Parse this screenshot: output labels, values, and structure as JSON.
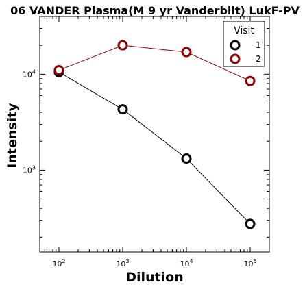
{
  "chart_data": {
    "type": "line",
    "title": "06 VANDER Plasma(M 9 yr Vanderbilt) LukF-PV",
    "xlabel": "Dilution",
    "ylabel": "Intensity",
    "x_scale": "log",
    "y_scale": "log",
    "xlim": [
      50,
      200000
    ],
    "ylim": [
      140,
      40000
    ],
    "x_ticks": [
      {
        "value": 100,
        "base": "10",
        "exp": "2"
      },
      {
        "value": 1000,
        "base": "10",
        "exp": "3"
      },
      {
        "value": 10000,
        "base": "10",
        "exp": "4"
      },
      {
        "value": 100000,
        "base": "10",
        "exp": "5"
      }
    ],
    "y_ticks": [
      {
        "value": 1000,
        "base": "10",
        "exp": "3"
      },
      {
        "value": 10000,
        "base": "10",
        "exp": "4"
      }
    ],
    "legend": {
      "title": "Visit",
      "position": "top-right"
    },
    "series": [
      {
        "name": "1",
        "color": "#000000",
        "x": [
          100,
          1000,
          10000,
          100000
        ],
        "y": [
          10500,
          4300,
          1320,
          275
        ]
      },
      {
        "name": "2",
        "color": "#8b0000",
        "x": [
          100,
          1000,
          10000,
          100000
        ],
        "y": [
          11000,
          20000,
          17000,
          8500
        ]
      }
    ]
  }
}
